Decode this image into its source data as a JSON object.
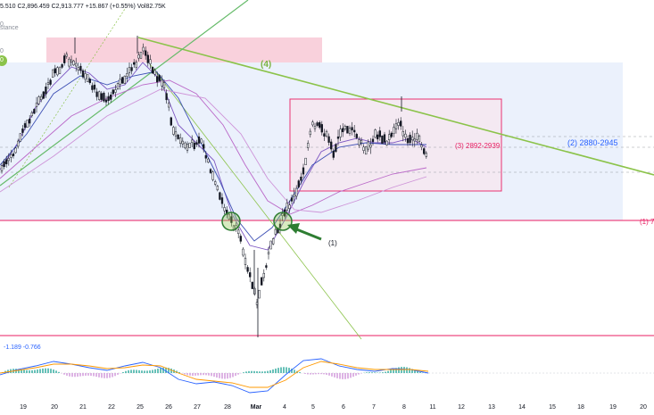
{
  "header": {
    "ohlc": "5.510  C2,896.459  C2,913.777  +15.867 (+0.55%)  Vol82.75K",
    "indicator_fragment_1": "0",
    "indicator_fragment_2": "stance",
    "indicator_fragment_3": "0"
  },
  "annotations": {
    "wave_4": "(4)",
    "zone_3": "(3) 2892-2939",
    "zone_2": "(2) 2880-2945",
    "level_1": "(1) 7",
    "arrow_1": "(1)"
  },
  "oscillator": {
    "values": "-1.189  -0.766"
  },
  "x_axis": {
    "ticks": [
      "19",
      "20",
      "21",
      "22",
      "25",
      "26",
      "27",
      "28",
      "Mar",
      "4",
      "5",
      "6",
      "7",
      "8",
      "11",
      "12",
      "13",
      "14",
      "15",
      "18",
      "19",
      "20"
    ]
  },
  "colors": {
    "green_line": "#8bc34a",
    "red_zone": "#e91e63",
    "blue_zone": "#2962ff",
    "ma_purple": "#9c27b0",
    "candle": "#131722"
  }
}
